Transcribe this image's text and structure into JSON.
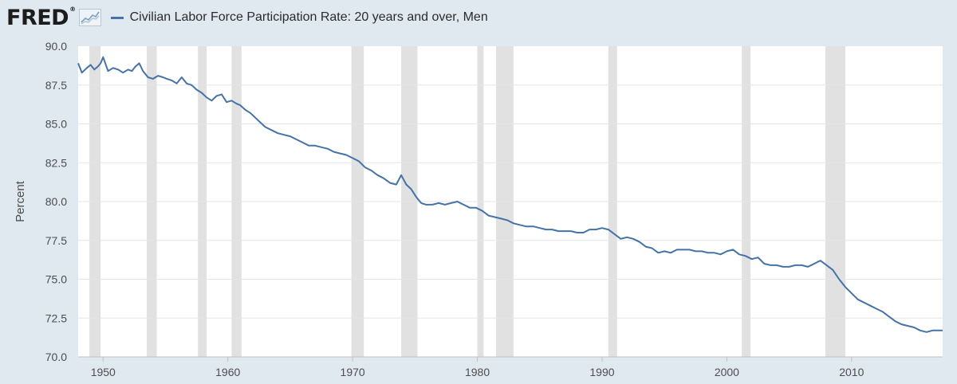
{
  "header": {
    "logo_text": "FRED",
    "logo_reg": "®",
    "logo_icon": "sparkline-icon"
  },
  "chart_data": {
    "type": "line",
    "title": "",
    "xlabel": "",
    "ylabel": "Percent",
    "xlim": [
      1948,
      2017.3
    ],
    "ylim": [
      70.0,
      90.0
    ],
    "x_ticks": [
      "1950",
      "1960",
      "1970",
      "1980",
      "1990",
      "2000",
      "2010"
    ],
    "y_ticks": [
      "90.0",
      "87.5",
      "85.0",
      "82.5",
      "80.0",
      "77.5",
      "75.0",
      "72.5",
      "70.0"
    ],
    "grid": true,
    "legend_position": "top-left",
    "colors": {
      "series": "#4572a7",
      "recession": "#e1e1e1",
      "grid": "#e5e5e5",
      "background": "#e1e9f0",
      "plot": "#ffffff"
    },
    "recessions": [
      [
        1948.9,
        1949.8
      ],
      [
        1953.5,
        1954.3
      ],
      [
        1957.6,
        1958.3
      ],
      [
        1960.3,
        1961.1
      ],
      [
        1969.9,
        1970.9
      ],
      [
        1973.9,
        1975.2
      ],
      [
        1980.0,
        1980.5
      ],
      [
        1981.5,
        1982.9
      ],
      [
        1990.5,
        1991.2
      ],
      [
        2001.2,
        2001.9
      ],
      [
        2007.9,
        2009.5
      ]
    ],
    "series": [
      {
        "name": "Civilian Labor Force Participation Rate: 20 years and over, Men",
        "x": [
          1948.0,
          1948.3,
          1948.7,
          1949.0,
          1949.3,
          1949.6,
          1949.8,
          1950.0,
          1950.4,
          1950.8,
          1951.2,
          1951.6,
          1952.0,
          1952.3,
          1952.6,
          1952.9,
          1953.2,
          1953.6,
          1954.0,
          1954.4,
          1954.8,
          1955.1,
          1955.5,
          1955.9,
          1956.3,
          1956.7,
          1957.1,
          1957.5,
          1957.9,
          1958.3,
          1958.7,
          1959.1,
          1959.5,
          1959.9,
          1960.3,
          1960.7,
          1961.0,
          1961.4,
          1961.8,
          1962.2,
          1962.6,
          1963.0,
          1963.5,
          1964.0,
          1964.5,
          1965.0,
          1965.5,
          1966.0,
          1966.5,
          1967.0,
          1967.5,
          1968.0,
          1968.5,
          1969.0,
          1969.5,
          1970.0,
          1970.5,
          1971.0,
          1971.5,
          1972.0,
          1972.5,
          1973.0,
          1973.5,
          1973.9,
          1974.3,
          1974.7,
          1975.1,
          1975.5,
          1975.9,
          1976.4,
          1976.9,
          1977.4,
          1977.9,
          1978.4,
          1978.9,
          1979.4,
          1979.9,
          1980.4,
          1980.9,
          1981.4,
          1981.9,
          1982.4,
          1982.9,
          1983.4,
          1983.9,
          1984.5,
          1985.0,
          1985.5,
          1986.0,
          1986.5,
          1987.0,
          1987.5,
          1988.0,
          1988.5,
          1989.0,
          1989.5,
          1990.0,
          1990.5,
          1991.0,
          1991.5,
          1992.0,
          1992.5,
          1993.0,
          1993.5,
          1994.0,
          1994.5,
          1995.0,
          1995.5,
          1996.0,
          1996.5,
          1997.0,
          1997.5,
          1998.0,
          1998.5,
          1999.0,
          1999.5,
          2000.0,
          2000.5,
          2001.0,
          2001.5,
          2002.0,
          2002.5,
          2003.0,
          2003.5,
          2004.0,
          2004.5,
          2005.0,
          2005.5,
          2006.0,
          2006.5,
          2007.0,
          2007.5,
          2008.0,
          2008.5,
          2009.0,
          2009.5,
          2010.0,
          2010.5,
          2011.0,
          2011.5,
          2012.0,
          2012.5,
          2013.0,
          2013.5,
          2014.0,
          2014.5,
          2015.0,
          2015.5,
          2016.0,
          2016.5,
          2017.0,
          2017.3
        ],
        "values": [
          88.9,
          88.3,
          88.6,
          88.8,
          88.5,
          88.7,
          88.9,
          89.3,
          88.4,
          88.6,
          88.5,
          88.3,
          88.5,
          88.4,
          88.7,
          88.9,
          88.4,
          88.0,
          87.9,
          88.1,
          88.0,
          87.9,
          87.8,
          87.6,
          88.0,
          87.6,
          87.5,
          87.2,
          87.0,
          86.7,
          86.5,
          86.8,
          86.9,
          86.4,
          86.5,
          86.3,
          86.2,
          85.9,
          85.7,
          85.4,
          85.1,
          84.8,
          84.6,
          84.4,
          84.3,
          84.2,
          84.0,
          83.8,
          83.6,
          83.6,
          83.5,
          83.4,
          83.2,
          83.1,
          83.0,
          82.8,
          82.6,
          82.2,
          82.0,
          81.7,
          81.5,
          81.2,
          81.1,
          81.7,
          81.1,
          80.8,
          80.3,
          79.9,
          79.8,
          79.8,
          79.9,
          79.8,
          79.9,
          80.0,
          79.8,
          79.6,
          79.6,
          79.4,
          79.1,
          79.0,
          78.9,
          78.8,
          78.6,
          78.5,
          78.4,
          78.4,
          78.3,
          78.2,
          78.2,
          78.1,
          78.1,
          78.1,
          78.0,
          78.0,
          78.2,
          78.2,
          78.3,
          78.2,
          77.9,
          77.6,
          77.7,
          77.6,
          77.4,
          77.1,
          77.0,
          76.7,
          76.8,
          76.7,
          76.9,
          76.9,
          76.9,
          76.8,
          76.8,
          76.7,
          76.7,
          76.6,
          76.8,
          76.9,
          76.6,
          76.5,
          76.3,
          76.4,
          76.0,
          75.9,
          75.9,
          75.8,
          75.8,
          75.9,
          75.9,
          75.8,
          76.0,
          76.2,
          75.9,
          75.6,
          75.0,
          74.5,
          74.1,
          73.7,
          73.5,
          73.3,
          73.1,
          72.9,
          72.6,
          72.3,
          72.1,
          72.0,
          71.9,
          71.7,
          71.6,
          71.7,
          71.7,
          71.7
        ]
      }
    ]
  }
}
